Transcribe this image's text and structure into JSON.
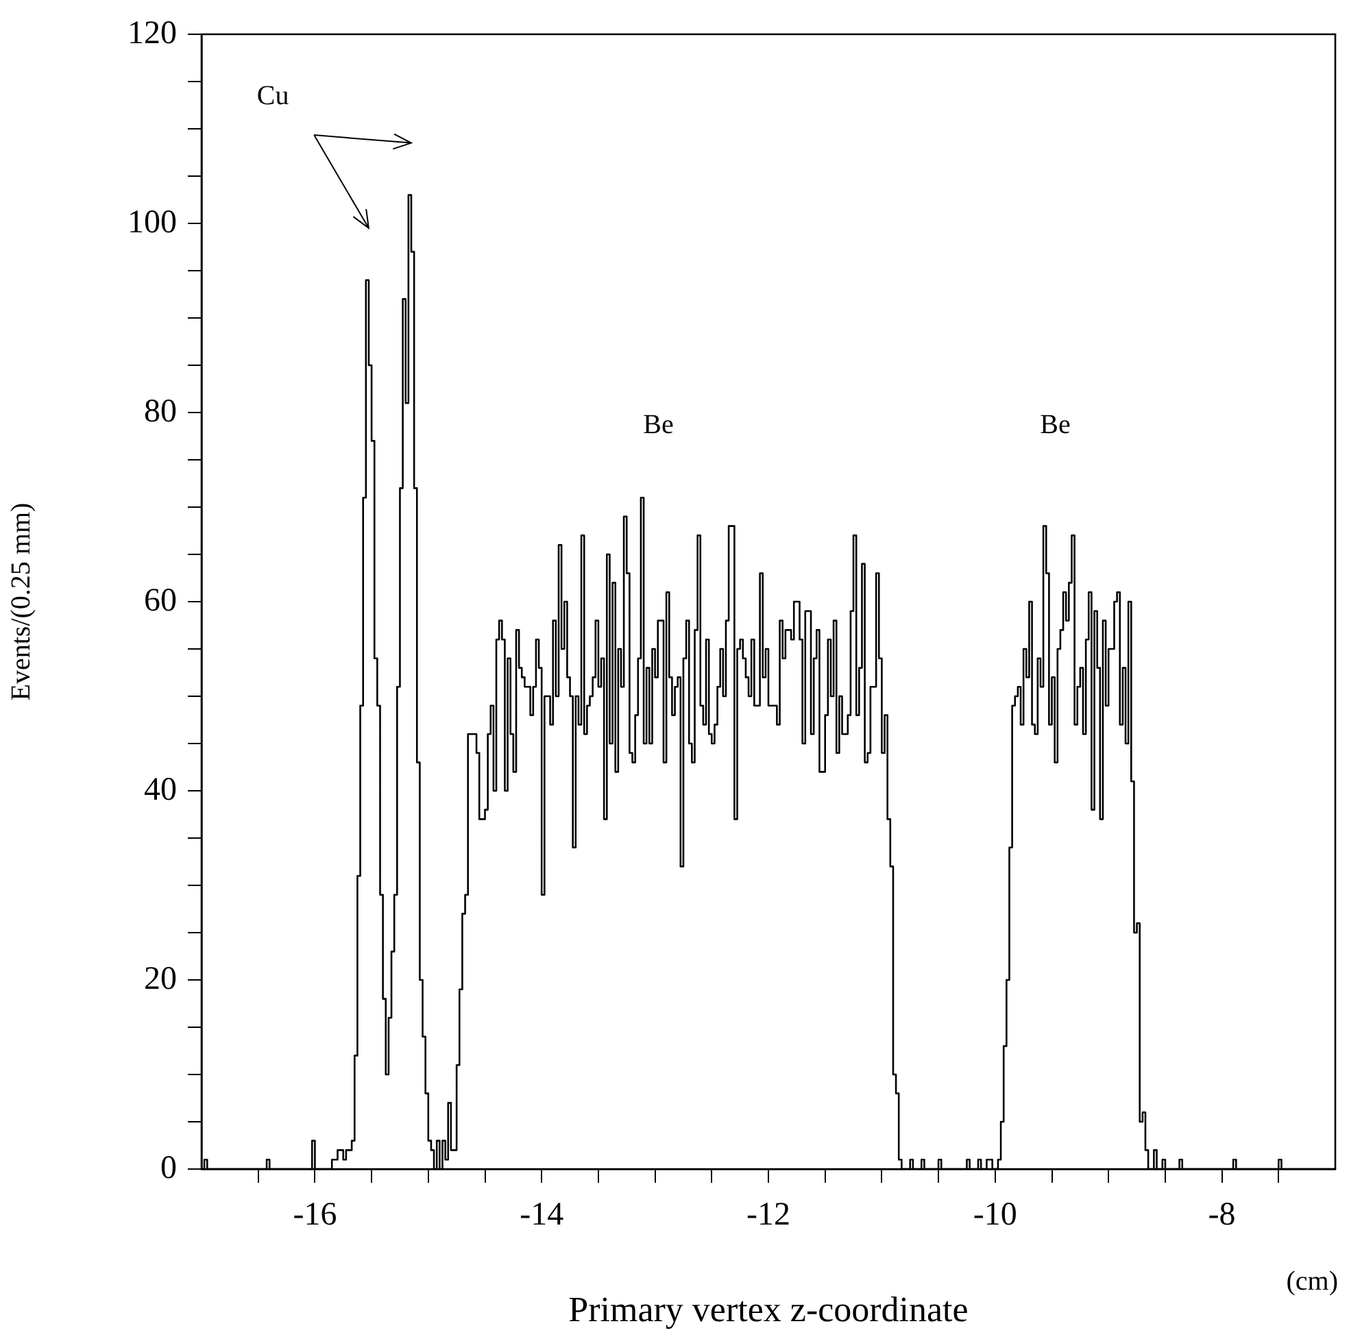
{
  "chart_data": {
    "type": "step",
    "xlabel": "Primary vertex z-coordinate",
    "ylabel": "Events/(0.25 mm)",
    "xlim": [
      -17,
      -7
    ],
    "xticks": [
      {
        "value": -16.5,
        "label": null
      },
      -16,
      {
        "value": -15.5,
        "label": null
      },
      {
        "value": -15,
        "label": null
      },
      {
        "value": -14.5,
        "label": null
      },
      -14,
      {
        "value": -13.5,
        "label": null
      },
      {
        "value": -13,
        "label": null
      },
      {
        "value": -12.5,
        "label": null
      },
      -12,
      {
        "value": -11.5,
        "label": null
      },
      {
        "value": -11,
        "label": null
      },
      {
        "value": -10.5,
        "label": null
      },
      -10,
      {
        "value": -9.5,
        "label": null
      },
      {
        "value": -9,
        "label": null
      },
      {
        "value": -8.5,
        "label": null
      },
      -8,
      {
        "value": -7.5,
        "label": null
      }
    ],
    "ylim": [
      0,
      120
    ],
    "yticks": [
      0,
      {
        "value": 5,
        "label": null
      },
      {
        "value": 10,
        "label": null
      },
      {
        "value": 15,
        "label": null
      },
      20,
      {
        "value": 25,
        "label": null
      },
      {
        "value": 30,
        "label": null
      },
      {
        "value": 35,
        "label": null
      },
      40,
      {
        "value": 45,
        "label": null
      },
      {
        "value": 50,
        "label": null
      },
      {
        "value": 55,
        "label": null
      },
      60,
      {
        "value": 65,
        "label": null
      },
      {
        "value": 70,
        "label": null
      },
      {
        "value": 75,
        "label": null
      },
      80,
      {
        "value": 85,
        "label": null
      },
      {
        "value": 90,
        "label": null
      },
      {
        "value": 95,
        "label": null
      },
      100,
      {
        "value": 105,
        "label": null
      },
      {
        "value": 110,
        "label": null
      },
      {
        "value": 115,
        "label": null
      },
      120
    ],
    "grid": false,
    "legend": false,
    "marker": "none",
    "line_style": "solid",
    "annotations": [
      "Cu",
      "Be",
      "Be",
      "(cm)"
    ],
    "series": [
      {
        "color": "#000000",
        "x": [
          -17,
          -16.975,
          -16.95,
          -16.425,
          -16.4,
          -16.025,
          -16.0,
          -15.85,
          -15.8,
          -15.75,
          -15.725,
          -15.7,
          -15.675,
          -15.65,
          -15.625,
          -15.6,
          -15.575,
          -15.55,
          -15.525,
          -15.5,
          -15.475,
          -15.45,
          -15.425,
          -15.4,
          -15.375,
          -15.35,
          -15.325,
          -15.3,
          -15.275,
          -15.25,
          -15.225,
          -15.2,
          -15.175,
          -15.15,
          -15.125,
          -15.1,
          -15.075,
          -15.05,
          -15.025,
          -15.0,
          -14.975,
          -14.95,
          -14.925,
          -14.9,
          -14.875,
          -14.85,
          -14.825,
          -14.8,
          -14.775,
          -14.75,
          -14.725,
          -14.7,
          -14.675,
          -14.65,
          -14.6,
          -14.575,
          -14.55,
          -14.5,
          -14.475,
          -14.45,
          -14.425,
          -14.4,
          -14.375,
          -14.35,
          -14.325,
          -14.3,
          -14.275,
          -14.25,
          -14.225,
          -14.2,
          -14.175,
          -14.15,
          -14.1,
          -14.075,
          -14.05,
          -14.025,
          -14.0,
          -13.975,
          -13.925,
          -13.9,
          -13.875,
          -13.85,
          -13.825,
          -13.8,
          -13.775,
          -13.75,
          -13.725,
          -13.7,
          -13.675,
          -13.65,
          -13.625,
          -13.6,
          -13.575,
          -13.55,
          -13.525,
          -13.5,
          -13.475,
          -13.45,
          -13.425,
          -13.4,
          -13.375,
          -13.35,
          -13.325,
          -13.3,
          -13.275,
          -13.25,
          -13.225,
          -13.2,
          -13.175,
          -13.15,
          -13.125,
          -13.1,
          -13.075,
          -13.05,
          -13.025,
          -13.0,
          -12.975,
          -12.925,
          -12.9,
          -12.875,
          -12.85,
          -12.825,
          -12.8,
          -12.775,
          -12.75,
          -12.725,
          -12.7,
          -12.675,
          -12.65,
          -12.625,
          -12.6,
          -12.575,
          -12.55,
          -12.525,
          -12.5,
          -12.475,
          -12.45,
          -12.425,
          -12.4,
          -12.375,
          -12.35,
          -12.3,
          -12.275,
          -12.25,
          -12.225,
          -12.2,
          -12.175,
          -12.15,
          -12.125,
          -12.075,
          -12.05,
          -12.025,
          -12.0,
          -11.925,
          -11.9,
          -11.875,
          -11.85,
          -11.8,
          -11.775,
          -11.725,
          -11.7,
          -11.675,
          -11.625,
          -11.6,
          -11.575,
          -11.55,
          -11.5,
          -11.475,
          -11.45,
          -11.425,
          -11.4,
          -11.375,
          -11.35,
          -11.3,
          -11.275,
          -11.25,
          -11.225,
          -11.2,
          -11.175,
          -11.15,
          -11.125,
          -11.1,
          -11.05,
          -11.025,
          -11.0,
          -10.975,
          -10.95,
          -10.925,
          -10.9,
          -10.875,
          -10.85,
          -10.825,
          -10.75,
          -10.725,
          -10.65,
          -10.625,
          -10.5,
          -10.475,
          -10.25,
          -10.225,
          -10.15,
          -10.125,
          -10.075,
          -10.025,
          -9.975,
          -9.95,
          -9.925,
          -9.9,
          -9.875,
          -9.85,
          -9.825,
          -9.8,
          -9.775,
          -9.75,
          -9.725,
          -9.7,
          -9.675,
          -9.65,
          -9.625,
          -9.6,
          -9.575,
          -9.55,
          -9.525,
          -9.5,
          -9.475,
          -9.45,
          -9.425,
          -9.4,
          -9.375,
          -9.35,
          -9.325,
          -9.3,
          -9.275,
          -9.25,
          -9.225,
          -9.2,
          -9.175,
          -9.15,
          -9.125,
          -9.1,
          -9.075,
          -9.05,
          -9.025,
          -9.0,
          -8.95,
          -8.925,
          -8.9,
          -8.875,
          -8.85,
          -8.825,
          -8.8,
          -8.775,
          -8.75,
          -8.725,
          -8.7,
          -8.675,
          -8.65,
          -8.6,
          -8.575,
          -8.525,
          -8.5,
          -8.375,
          -8.35,
          -7.9,
          -7.875,
          -7.5,
          -7.475,
          -7
        ],
        "values": [
          0,
          1,
          0,
          1,
          0,
          3,
          0,
          1,
          2,
          1,
          2,
          2,
          3,
          12,
          31,
          49,
          71,
          94,
          85,
          77,
          54,
          49,
          29,
          18,
          10,
          16,
          23,
          29,
          51,
          72,
          92,
          81,
          103,
          97,
          72,
          43,
          20,
          14,
          8,
          3,
          2,
          0,
          3,
          0,
          3,
          1,
          7,
          2,
          2,
          11,
          19,
          27,
          29,
          46,
          46,
          44,
          37,
          38,
          46,
          49,
          40,
          56,
          58,
          56,
          40,
          54,
          46,
          42,
          57,
          53,
          52,
          51,
          48,
          51,
          56,
          53,
          29,
          50,
          47,
          58,
          50,
          66,
          55,
          60,
          52,
          50,
          34,
          50,
          47,
          67,
          46,
          49,
          50,
          52,
          58,
          51,
          54,
          37,
          65,
          45,
          62,
          42,
          55,
          51,
          69,
          63,
          44,
          43,
          48,
          54,
          71,
          45,
          53,
          45,
          55,
          52,
          58,
          43,
          61,
          52,
          48,
          51,
          52,
          32,
          54,
          58,
          45,
          43,
          57,
          67,
          49,
          47,
          56,
          46,
          45,
          47,
          51,
          55,
          50,
          58,
          68,
          37,
          55,
          56,
          54,
          52,
          50,
          56,
          49,
          63,
          52,
          55,
          49,
          47,
          58,
          54,
          57,
          56,
          60,
          56,
          45,
          59,
          46,
          54,
          57,
          42,
          48,
          56,
          50,
          58,
          44,
          50,
          46,
          48,
          59,
          67,
          48,
          53,
          64,
          43,
          44,
          51,
          63,
          54,
          44,
          48,
          37,
          32,
          10,
          8,
          1,
          0,
          1,
          0,
          1,
          0,
          1,
          0,
          1,
          0,
          1,
          0,
          1,
          0,
          1,
          5,
          13,
          20,
          34,
          49,
          50,
          51,
          47,
          55,
          52,
          60,
          47,
          46,
          54,
          51,
          68,
          63,
          47,
          52,
          43,
          55,
          57,
          61,
          58,
          62,
          67,
          47,
          51,
          53,
          46,
          56,
          61,
          38,
          59,
          53,
          37,
          58,
          49,
          55,
          60,
          61,
          47,
          53,
          45,
          60,
          41,
          25,
          26,
          5,
          6,
          2,
          0,
          2,
          0,
          1,
          0,
          1,
          0,
          1,
          0,
          1,
          0,
          0
        ]
      }
    ]
  }
}
